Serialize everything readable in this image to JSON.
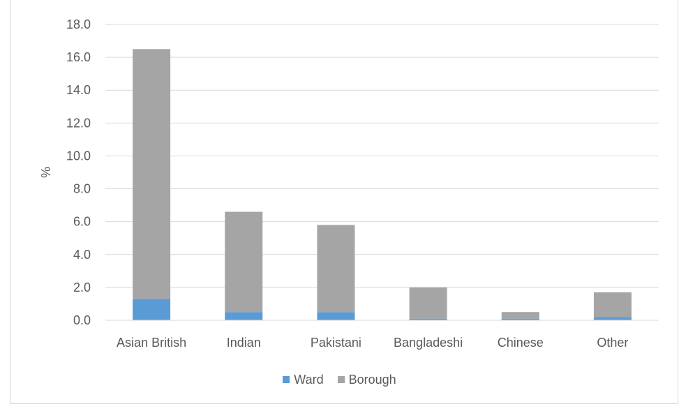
{
  "chart_data": {
    "type": "bar",
    "stacked": true,
    "categories": [
      "Asian British",
      "Indian",
      "Pakistani",
      "Bangladeshi",
      "Chinese",
      "Other"
    ],
    "series": [
      {
        "name": "Ward",
        "color": "#5b9bd5",
        "values": [
          1.3,
          0.5,
          0.5,
          0.1,
          0.1,
          0.2
        ]
      },
      {
        "name": "Borough",
        "color": "#a5a5a5",
        "values": [
          15.2,
          6.1,
          5.3,
          1.9,
          0.4,
          1.5
        ]
      }
    ],
    "title": "",
    "xlabel": "",
    "ylabel": "%",
    "ylim": [
      0,
      18
    ],
    "yticks": [
      "0.0",
      "2.0",
      "4.0",
      "6.0",
      "8.0",
      "10.0",
      "12.0",
      "14.0",
      "16.0",
      "18.0"
    ],
    "grid": true,
    "legend_position": "bottom"
  }
}
